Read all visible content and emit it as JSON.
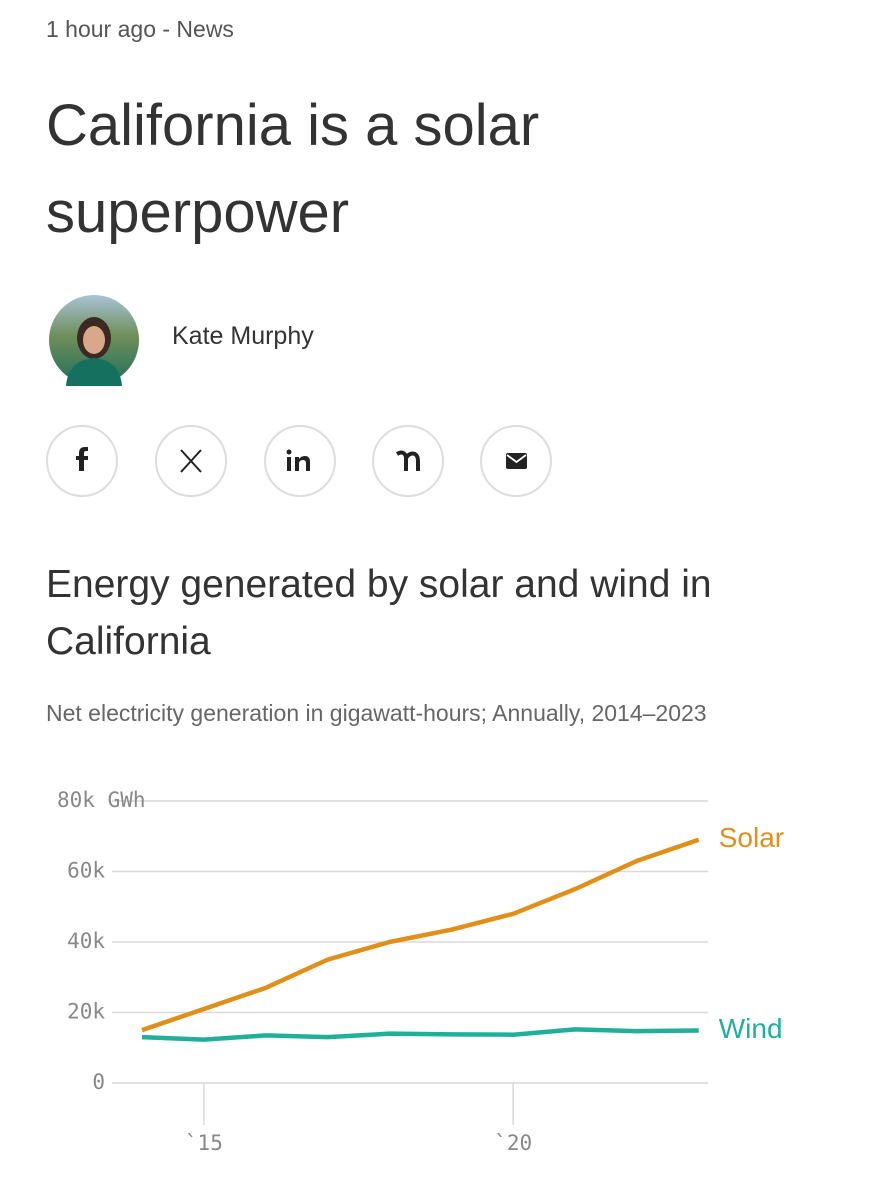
{
  "meta": "1 hour ago - News",
  "title": "California is a solar superpower",
  "author": "Kate Murphy",
  "chart_data": {
    "type": "line",
    "title": "Energy generated by solar and wind in California",
    "subtitle": "Net electricity generation in gigawatt-hours; Annually, 2014–2023",
    "x": [
      2014,
      2015,
      2016,
      2017,
      2018,
      2019,
      2020,
      2021,
      2022,
      2023
    ],
    "series": [
      {
        "name": "Solar",
        "color": "#e0901a",
        "values": [
          15000,
          21000,
          27000,
          35000,
          40000,
          43500,
          48000,
          55000,
          63000,
          69000
        ]
      },
      {
        "name": "Wind",
        "color": "#1fb09a",
        "values": [
          13000,
          12300,
          13500,
          13000,
          14000,
          13800,
          13700,
          15200,
          14700,
          14900
        ]
      }
    ],
    "xlim": [
      2013.45,
      2023.15
    ],
    "xticks": [
      {
        "value": 2015,
        "label": "`15"
      },
      {
        "value": 2020,
        "label": "`20"
      }
    ],
    "ylim": [
      0,
      80000
    ],
    "yticks": [
      0,
      {
        "value": 20000,
        "label": "20k"
      },
      {
        "value": 40000,
        "label": "40k"
      },
      {
        "value": 60000,
        "label": "60k"
      },
      {
        "value": 80000,
        "label": "80k GWh"
      }
    ],
    "grid": true
  }
}
